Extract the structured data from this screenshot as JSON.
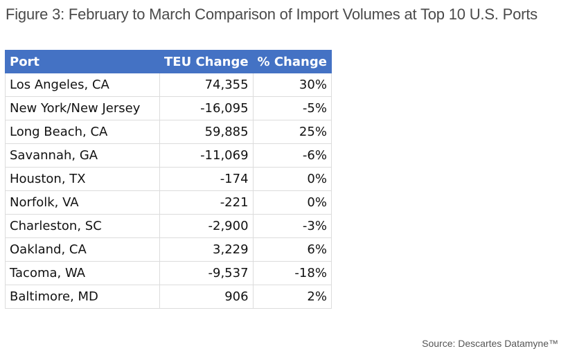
{
  "title": "Figure 3: February to March Comparison of Import Volumes at Top 10 U.S. Ports",
  "source": "Source: Descartes Datamyne™",
  "chart_data": {
    "type": "table",
    "columns": [
      "Port",
      "TEU Change",
      "% Change"
    ],
    "rows": [
      [
        "Los Angeles, CA",
        "74,355",
        "30%"
      ],
      [
        "New York/New Jersey",
        "-16,095",
        "-5%"
      ],
      [
        "Long Beach, CA",
        "59,885",
        "25%"
      ],
      [
        "Savannah, GA",
        "-11,069",
        "-6%"
      ],
      [
        "Houston, TX",
        "-174",
        "0%"
      ],
      [
        "Norfolk, VA",
        "-221",
        "0%"
      ],
      [
        "Charleston, SC",
        "-2,900",
        "-3%"
      ],
      [
        "Oakland, CA",
        "3,229",
        "6%"
      ],
      [
        "Tacoma, WA",
        "-9,537",
        "-18%"
      ],
      [
        "Baltimore, MD",
        "906",
        "2%"
      ]
    ],
    "colors": {
      "header_background": "#4472c4",
      "header_text": "#ffffff"
    }
  }
}
